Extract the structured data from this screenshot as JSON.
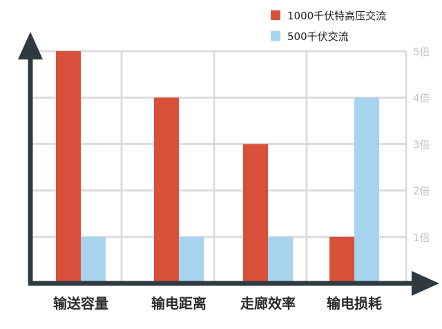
{
  "chart_data": {
    "type": "bar",
    "categories": [
      "输送容量",
      "输电距离",
      "走廊效率",
      "输电损耗"
    ],
    "series": [
      {
        "name": "1000千伏特高压交流",
        "values": [
          5,
          4,
          3,
          1
        ],
        "color": "#d9503a"
      },
      {
        "name": "500千伏交流",
        "values": [
          1,
          1,
          1,
          4
        ],
        "color": "#a6d3ee"
      }
    ],
    "yticks": [
      {
        "value": 1,
        "label": "1倍"
      },
      {
        "value": 2,
        "label": "2倍"
      },
      {
        "value": 3,
        "label": "3倍"
      },
      {
        "value": 4,
        "label": "4倍"
      },
      {
        "value": 5,
        "label": "5倍"
      }
    ],
    "ylim": [
      0,
      5
    ],
    "grid": true,
    "legend_position": "top-right",
    "axis_color": "#2e3a40",
    "grid_color": "#dcdcdc"
  }
}
